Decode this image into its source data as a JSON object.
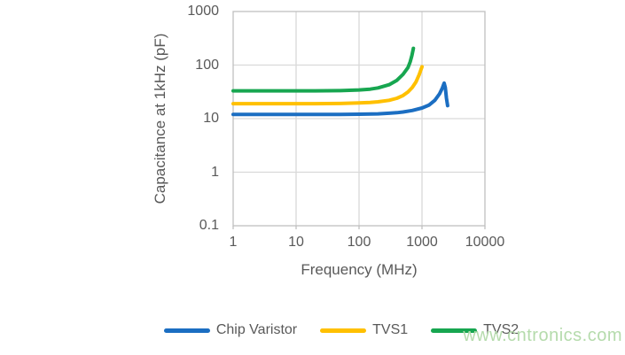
{
  "watermark": {
    "text": "www.cntronics.com",
    "color": "#b5dbac"
  },
  "styles": {
    "grid_color": "#d9d9d9",
    "axis_color": "#bfbfbf",
    "label_color": "#595959",
    "background": "#ffffff"
  },
  "chart_data": {
    "type": "line",
    "title": "",
    "xlabel": "Frequency (MHz)",
    "ylabel": "Capacitance at 1kHz (pF)",
    "xscale": "log",
    "yscale": "log",
    "xlim": [
      1,
      10000
    ],
    "ylim": [
      0.1,
      1000
    ],
    "grid": true,
    "legend_position": "bottom",
    "x_ticks": [
      1,
      10,
      100,
      1000,
      10000
    ],
    "x_tick_labels": [
      "1",
      "10",
      "100",
      "1000",
      "10000"
    ],
    "y_ticks": [
      0.1,
      1,
      10,
      100,
      1000
    ],
    "y_tick_labels": [
      "0.1",
      "1",
      "10",
      "100",
      "1000"
    ],
    "series": [
      {
        "name": "Chip Varistor",
        "color": "#1b6ec2",
        "flat_value_pF": 12,
        "peak": {
          "x_MHz": 2250,
          "y_pF": 46
        },
        "points": [
          [
            1,
            12
          ],
          [
            2,
            12
          ],
          [
            5,
            12
          ],
          [
            10,
            12
          ],
          [
            20,
            12
          ],
          [
            50,
            12
          ],
          [
            100,
            12.1
          ],
          [
            200,
            12.3
          ],
          [
            300,
            12.6
          ],
          [
            400,
            12.9
          ],
          [
            500,
            13.3
          ],
          [
            700,
            14.2
          ],
          [
            1000,
            15.8
          ],
          [
            1300,
            18
          ],
          [
            1600,
            22
          ],
          [
            1900,
            29
          ],
          [
            2100,
            37
          ],
          [
            2250,
            46
          ],
          [
            2350,
            38
          ],
          [
            2450,
            24
          ],
          [
            2550,
            17.5
          ]
        ]
      },
      {
        "name": "TVS1",
        "color": "#ffc000",
        "flat_value_pF": 19,
        "peak": {
          "x_MHz": 1000,
          "y_pF": 93
        },
        "points": [
          [
            1,
            19
          ],
          [
            2,
            19
          ],
          [
            5,
            19
          ],
          [
            10,
            19
          ],
          [
            20,
            19
          ],
          [
            50,
            19.2
          ],
          [
            100,
            19.6
          ],
          [
            150,
            20
          ],
          [
            200,
            20.6
          ],
          [
            300,
            22
          ],
          [
            400,
            24
          ],
          [
            500,
            27
          ],
          [
            600,
            31.5
          ],
          [
            700,
            38
          ],
          [
            800,
            48
          ],
          [
            900,
            66
          ],
          [
            1000,
            93
          ]
        ]
      },
      {
        "name": "TVS2",
        "color": "#17a650",
        "flat_value_pF": 33,
        "peak": {
          "x_MHz": 730,
          "y_pF": 205
        },
        "points": [
          [
            1,
            33
          ],
          [
            2,
            33
          ],
          [
            5,
            33
          ],
          [
            10,
            33
          ],
          [
            20,
            33
          ],
          [
            50,
            33.3
          ],
          [
            100,
            34.3
          ],
          [
            150,
            35.5
          ],
          [
            200,
            37.5
          ],
          [
            300,
            43
          ],
          [
            400,
            52
          ],
          [
            500,
            67
          ],
          [
            600,
            90
          ],
          [
            650,
            115
          ],
          [
            690,
            150
          ],
          [
            730,
            205
          ]
        ]
      }
    ]
  }
}
